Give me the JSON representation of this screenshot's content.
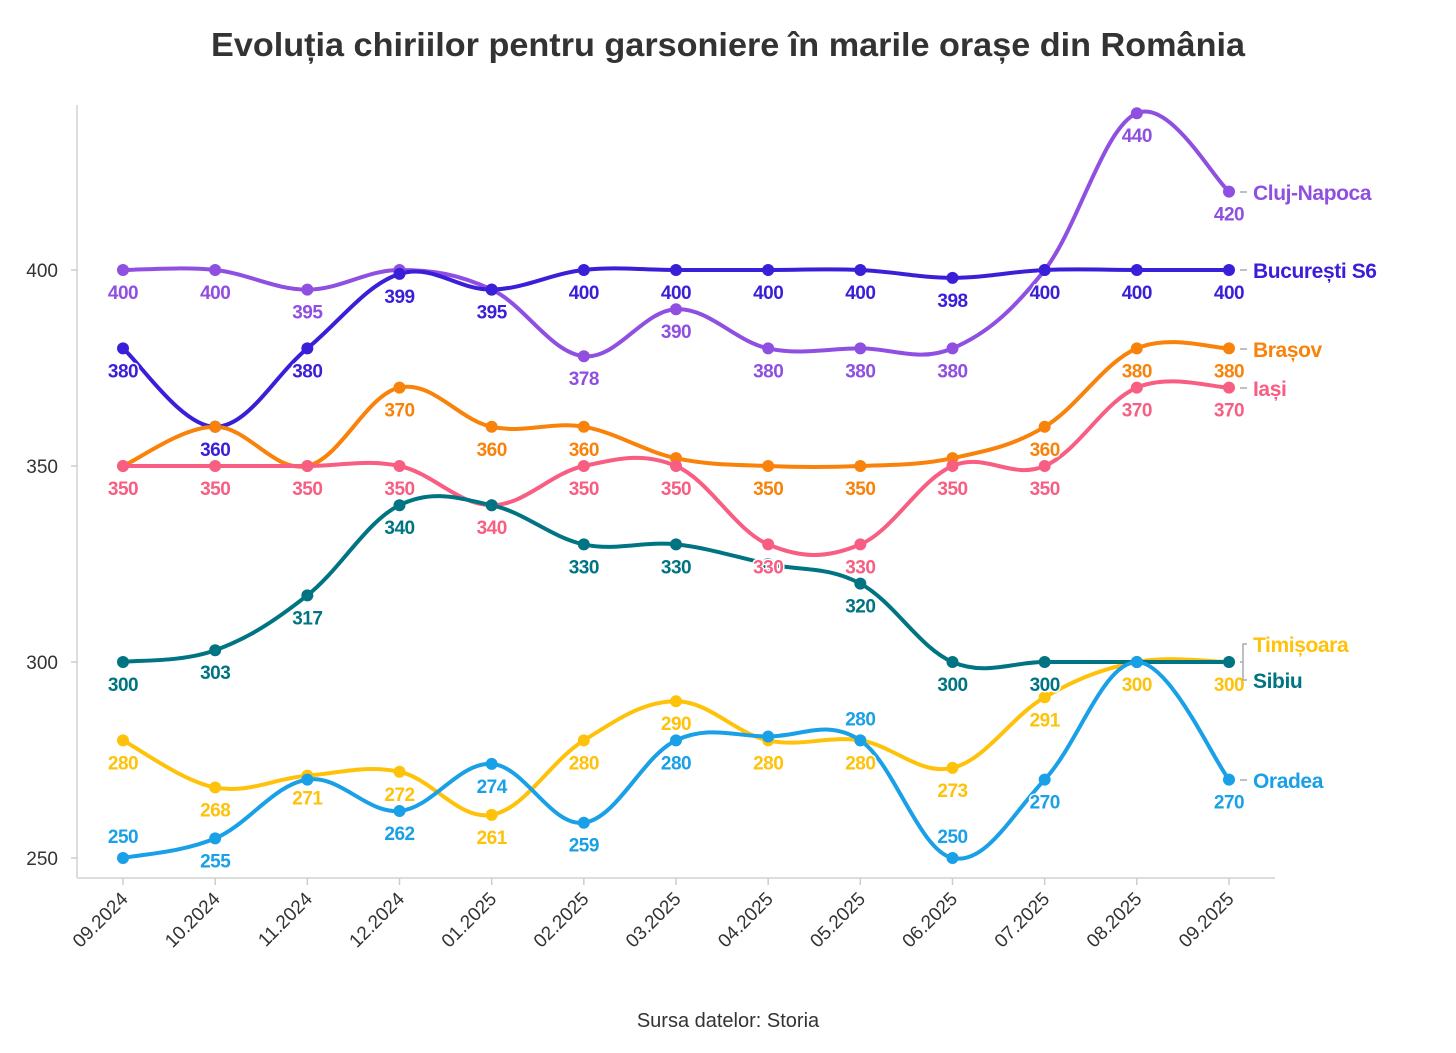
{
  "chart_data": {
    "type": "line",
    "title": "Evoluția chiriilor pentru garsoniere în marile orașe din România",
    "source": "Sursa datelor: Storia",
    "xlabel": "",
    "ylabel": "",
    "ylim": [
      245,
      435
    ],
    "yticks": [
      250,
      300,
      350,
      400
    ],
    "x": [
      "09.2024",
      "10.2024",
      "11.2024",
      "12.2024",
      "01.2025",
      "02.2025",
      "03.2025",
      "04.2025",
      "05.2025",
      "06.2025",
      "07.2025",
      "08.2025",
      "09.2025"
    ],
    "grid": false,
    "legend": "direct-labels-right",
    "series": [
      {
        "name": "Cluj-Napoca",
        "color": "#8f4fe0",
        "values": [
          400,
          400,
          395,
          400,
          395,
          378,
          390,
          380,
          380,
          380,
          400,
          440,
          420
        ],
        "hidden_labels": [
          3,
          4,
          10
        ],
        "labels_above": []
      },
      {
        "name": "București S6",
        "color": "#3a1fd8",
        "values": [
          380,
          360,
          380,
          399,
          395,
          400,
          400,
          400,
          400,
          398,
          400,
          400,
          400
        ],
        "hidden_labels": [],
        "labels_above": []
      },
      {
        "name": "Brașov",
        "color": "#f8820a",
        "values": [
          350,
          360,
          350,
          370,
          360,
          360,
          352,
          350,
          350,
          352,
          360,
          380,
          380
        ],
        "hidden_labels": [
          0,
          1,
          2,
          6,
          9
        ],
        "labels_above": []
      },
      {
        "name": "Iași",
        "color": "#f75e82",
        "values": [
          350,
          350,
          350,
          350,
          340,
          350,
          350,
          330,
          330,
          350,
          350,
          370,
          370
        ],
        "hidden_labels": [],
        "labels_above": []
      },
      {
        "name": "Timișoara",
        "color": "#ffc20a",
        "values": [
          280,
          268,
          271,
          272,
          261,
          280,
          290,
          280,
          280,
          273,
          291,
          300,
          300
        ],
        "hidden_labels": [],
        "labels_above": []
      },
      {
        "name": "Sibiu",
        "color": "#007482",
        "values": [
          300,
          303,
          317,
          340,
          340,
          330,
          330,
          325,
          320,
          300,
          300,
          300,
          300
        ],
        "hidden_labels": [
          4,
          7,
          11,
          12
        ],
        "labels_above": []
      },
      {
        "name": "Oradea",
        "color": "#1aa0e6",
        "values": [
          250,
          255,
          270,
          262,
          274,
          259,
          280,
          281,
          280,
          250,
          270,
          300,
          270
        ],
        "hidden_labels": [
          2,
          7,
          11
        ],
        "labels_above": [
          0,
          9
        ]
      }
    ]
  }
}
